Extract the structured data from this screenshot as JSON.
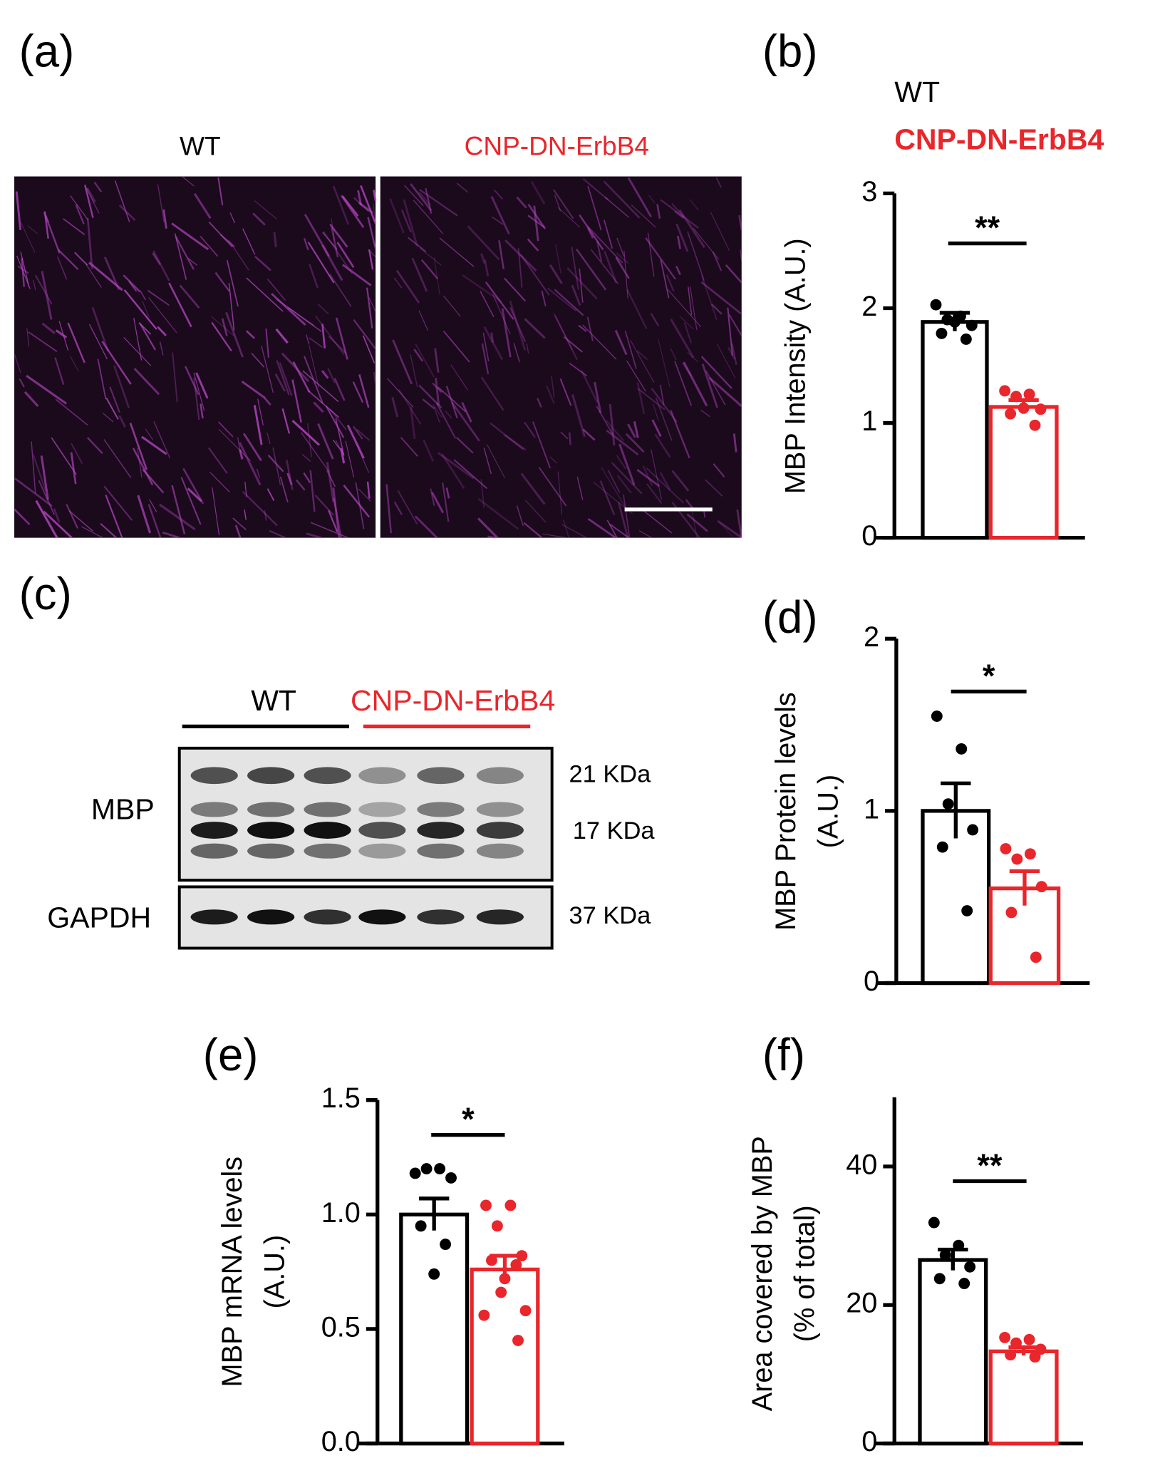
{
  "panel_labels": [
    "(a)",
    "(b)",
    "(c)",
    "(d)",
    "(e)",
    "(f)"
  ],
  "panel_a": {
    "groups": [
      "WT",
      "CNP-DN-ErbB4"
    ]
  },
  "panel_c": {
    "groups": [
      "WT",
      "CNP-DN-ErbB4"
    ],
    "rows": [
      "MBP",
      "GAPDH"
    ],
    "sizes": [
      "21 KDa",
      "17 KDa",
      "37 KDa"
    ]
  },
  "chart_data": [
    {
      "type": "bar",
      "ylabel": [
        "MBP Intensity (A.U.)"
      ],
      "ylim": [
        0,
        3
      ],
      "yticks": [
        0,
        1,
        2,
        3
      ],
      "significance": "**",
      "legend": true,
      "series": [
        {
          "name": "WT",
          "color": "#000000",
          "values": [
            1.88
          ],
          "errors": [
            0.08
          ],
          "points": [
            2.03,
            1.93,
            1.9,
            1.85,
            1.78,
            1.73,
            1.88
          ]
        },
        {
          "name": "CNP-DN-ErbB4",
          "color": "#e8262b",
          "values": [
            1.14
          ],
          "errors": [
            0.06
          ],
          "points": [
            1.28,
            1.25,
            1.23,
            1.12,
            1.08,
            0.98,
            1.13
          ]
        }
      ]
    },
    {
      "type": "bar",
      "ylabel": [
        "MBP Protein levels",
        "(A.U.)"
      ],
      "ylim": [
        0,
        2
      ],
      "yticks": [
        0,
        1,
        2
      ],
      "significance": "*",
      "series": [
        {
          "color": "#000000",
          "values": [
            1.0
          ],
          "errors": [
            0.16
          ],
          "points": [
            1.55,
            1.36,
            1.04,
            0.89,
            0.79,
            0.42
          ]
        },
        {
          "color": "#e8262b",
          "values": [
            0.55
          ],
          "errors": [
            0.1
          ],
          "points": [
            0.78,
            0.75,
            0.72,
            0.56,
            0.41,
            0.15
          ]
        }
      ]
    },
    {
      "type": "bar",
      "ylabel": [
        "MBP mRNA levels",
        "(A.U.)"
      ],
      "ylim": [
        0,
        1.5
      ],
      "yticks": [
        {
          "value": 0,
          "label": "0.0"
        },
        {
          "value": 0.5,
          "label": "0.5"
        },
        {
          "value": 1,
          "label": "1.0"
        },
        {
          "value": 1.5,
          "label": "1.5"
        }
      ],
      "significance": "*",
      "series": [
        {
          "color": "#000000",
          "values": [
            1.0
          ],
          "errors": [
            0.07
          ],
          "points": [
            1.18,
            1.2,
            1.2,
            1.16,
            0.95,
            0.87,
            0.74
          ]
        },
        {
          "color": "#e8262b",
          "values": [
            0.76
          ],
          "errors": [
            0.06
          ],
          "points": [
            1.04,
            1.04,
            0.95,
            0.82,
            0.8,
            0.78,
            0.72,
            0.66,
            0.58,
            0.56,
            0.45
          ]
        }
      ]
    },
    {
      "type": "bar",
      "ylabel": [
        "Area covered by MBP",
        "(% of total)"
      ],
      "ylim": [
        0,
        50
      ],
      "yticks": [
        0,
        20,
        40
      ],
      "significance": "**",
      "series": [
        {
          "color": "#000000",
          "values": [
            26.5
          ],
          "errors": [
            1.5
          ],
          "points": [
            31.9,
            28.6,
            27.2,
            25.5,
            23.8,
            23.1
          ]
        },
        {
          "color": "#e8262b",
          "values": [
            13.3
          ],
          "errors": [
            0.6
          ],
          "points": [
            15.3,
            15.0,
            14.5,
            13.6,
            12.8,
            12.5
          ]
        }
      ]
    }
  ]
}
